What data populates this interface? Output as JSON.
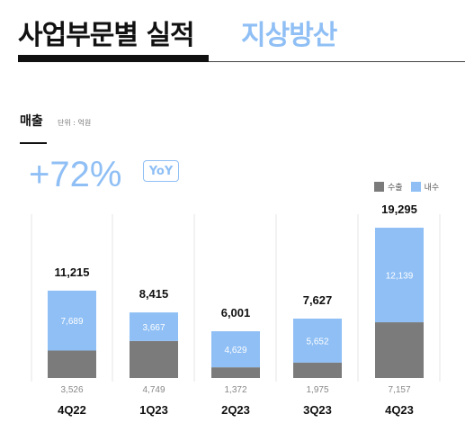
{
  "header": {
    "title": "사업부문별 실적",
    "subtitle": "지상방산"
  },
  "section": {
    "label": "매출",
    "unit": "단위 : 억원"
  },
  "growth": {
    "value": "+72%",
    "badge": "YoY"
  },
  "colors": {
    "export": "#7b7b7b",
    "domestic": "#8fbff5",
    "accent": "#8fbff5"
  },
  "chart_data": {
    "type": "bar",
    "stacked": true,
    "categories": [
      "4Q22",
      "1Q23",
      "2Q23",
      "3Q23",
      "4Q23"
    ],
    "totals": [
      "11,215",
      "8,415",
      "6,001",
      "7,627",
      "19,295"
    ],
    "series": [
      {
        "name": "수출",
        "values": [
          3526,
          4749,
          1372,
          1975,
          7157
        ],
        "labels": [
          "3,526",
          "4,749",
          "1,372",
          "1,975",
          "7,157"
        ]
      },
      {
        "name": "내수",
        "values": [
          7689,
          3667,
          4629,
          5652,
          12139
        ],
        "labels": [
          "7,689",
          "3,667",
          "4,629",
          "5,652",
          "12,139"
        ]
      }
    ],
    "legend": "top-right"
  }
}
